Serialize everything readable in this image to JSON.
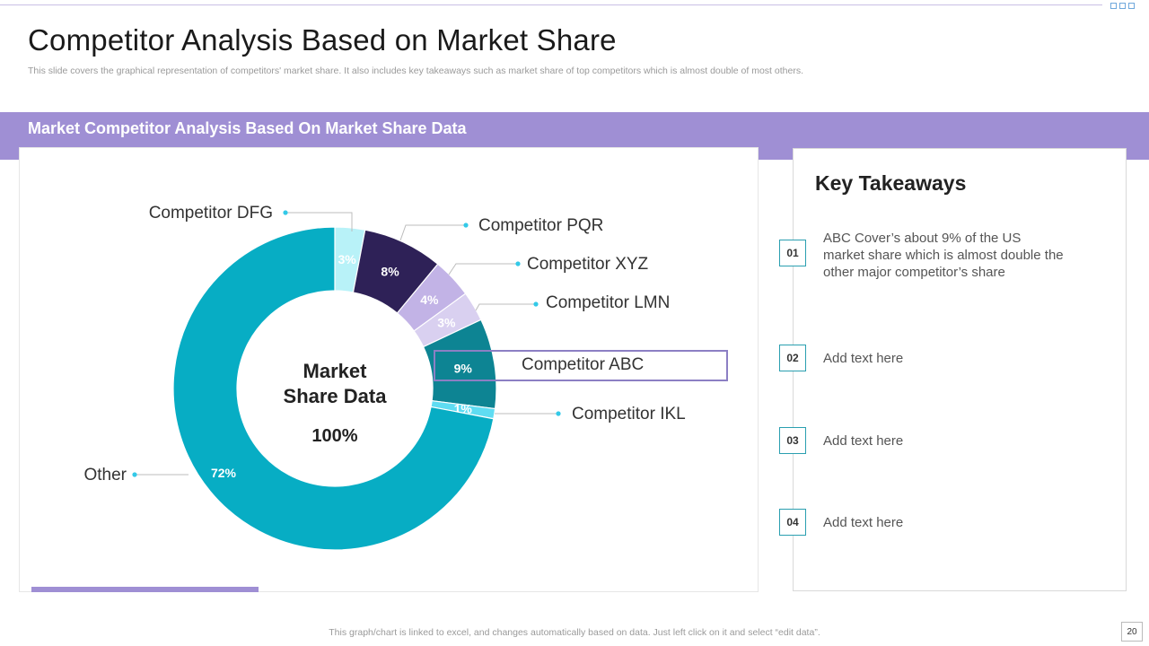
{
  "slide": {
    "title": "Competitor Analysis Based on Market Share",
    "subtitle": "This slide covers the graphical representation of competitors' market share. It also includes key takeaways such as market share of top competitors which is almost double of most others.",
    "band_title": "Market Competitor Analysis Based On Market Share Data",
    "footer_note": "This graph/chart is linked to excel,  and changes automatically based on data. Just left click on it and select “edit data”.",
    "page_number": "20"
  },
  "chart_data": {
    "type": "pie",
    "center_label_line1": "Market",
    "center_label_line2": "Share Data",
    "center_value": "100%",
    "slices": [
      {
        "label": "Competitor DFG",
        "value": 3,
        "display": "3%",
        "color": "#b8f2f8",
        "text_color": "#ffffff"
      },
      {
        "label": "Competitor PQR",
        "value": 8,
        "display": "8%",
        "color": "#2e2157",
        "text_color": "#ffffff"
      },
      {
        "label": "Competitor XYZ",
        "value": 4,
        "display": "4%",
        "color": "#c2b3e6",
        "text_color": "#ffffff"
      },
      {
        "label": "Competitor LMN",
        "value": 3,
        "display": "3%",
        "color": "#d9d0f0",
        "text_color": "#ffffff"
      },
      {
        "label": "Competitor ABC",
        "value": 9,
        "display": "9%",
        "color": "#0d8493",
        "text_color": "#ffffff"
      },
      {
        "label": "Competitor IKL",
        "value": 1,
        "display": "1%",
        "color": "#5fdcf2",
        "text_color": "#ffffff"
      },
      {
        "label": "Other",
        "value": 72,
        "display": "72%",
        "color": "#07adc4",
        "text_color": "#ffffff"
      }
    ],
    "highlight": "Competitor ABC",
    "dot_color": "#33c9e8",
    "leader_color": "#bcbcbc",
    "highlight_box_color": "#8c7fc4"
  },
  "takeaways": {
    "title": "Key Takeaways",
    "items": [
      {
        "number": "01",
        "text": "ABC Cover’s about 9% of the US market share which is almost double the other major competitor’s share"
      },
      {
        "number": "02",
        "text": "Add text here"
      },
      {
        "number": "03",
        "text": "Add text here"
      },
      {
        "number": "04",
        "text": "Add text here"
      }
    ]
  }
}
